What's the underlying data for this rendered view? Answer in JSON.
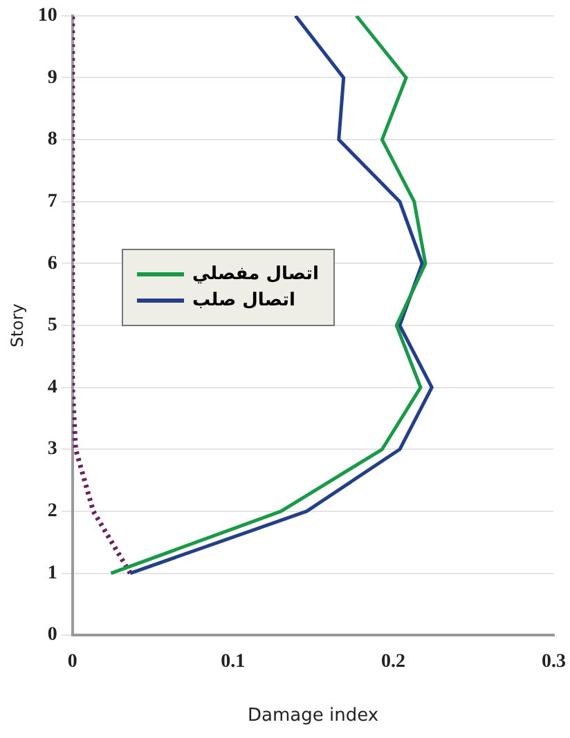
{
  "chart_data": {
    "type": "line",
    "xlabel": "Damage index",
    "ylabel": "Story",
    "xlim": [
      0,
      0.3
    ],
    "xticks": [
      0,
      0.1,
      0.2,
      0.3
    ],
    "ylim": [
      0,
      10
    ],
    "yticks": [
      0,
      1,
      2,
      3,
      4,
      5,
      6,
      7,
      8,
      9,
      10
    ],
    "grid": "y",
    "legend": "left",
    "marker": "none",
    "series": [
      {
        "name": "اتصال مفصلي",
        "color": "#1a9a48",
        "x": [
          0.024,
          0.13,
          0.193,
          0.217,
          0.202,
          0.22,
          0.213,
          0.193,
          0.208,
          0.177
        ],
        "values": [
          1,
          2,
          3,
          4,
          5,
          6,
          7,
          8,
          9,
          10
        ]
      },
      {
        "name": "اتصال صلب",
        "color": "#243f8a",
        "x": [
          0.036,
          0.146,
          0.204,
          0.224,
          0.204,
          0.218,
          0.204,
          0.166,
          0.169,
          0.139
        ],
        "values": [
          1,
          2,
          3,
          4,
          5,
          6,
          7,
          8,
          9,
          10
        ]
      },
      {
        "color": "#6a1f5e",
        "line_style": "dotted",
        "x": [
          0.036,
          0.013,
          0.002,
          0,
          0,
          0,
          0,
          0,
          0,
          0
        ],
        "values": [
          1,
          2,
          3,
          4,
          5,
          6,
          7,
          8,
          9,
          10
        ]
      }
    ]
  }
}
